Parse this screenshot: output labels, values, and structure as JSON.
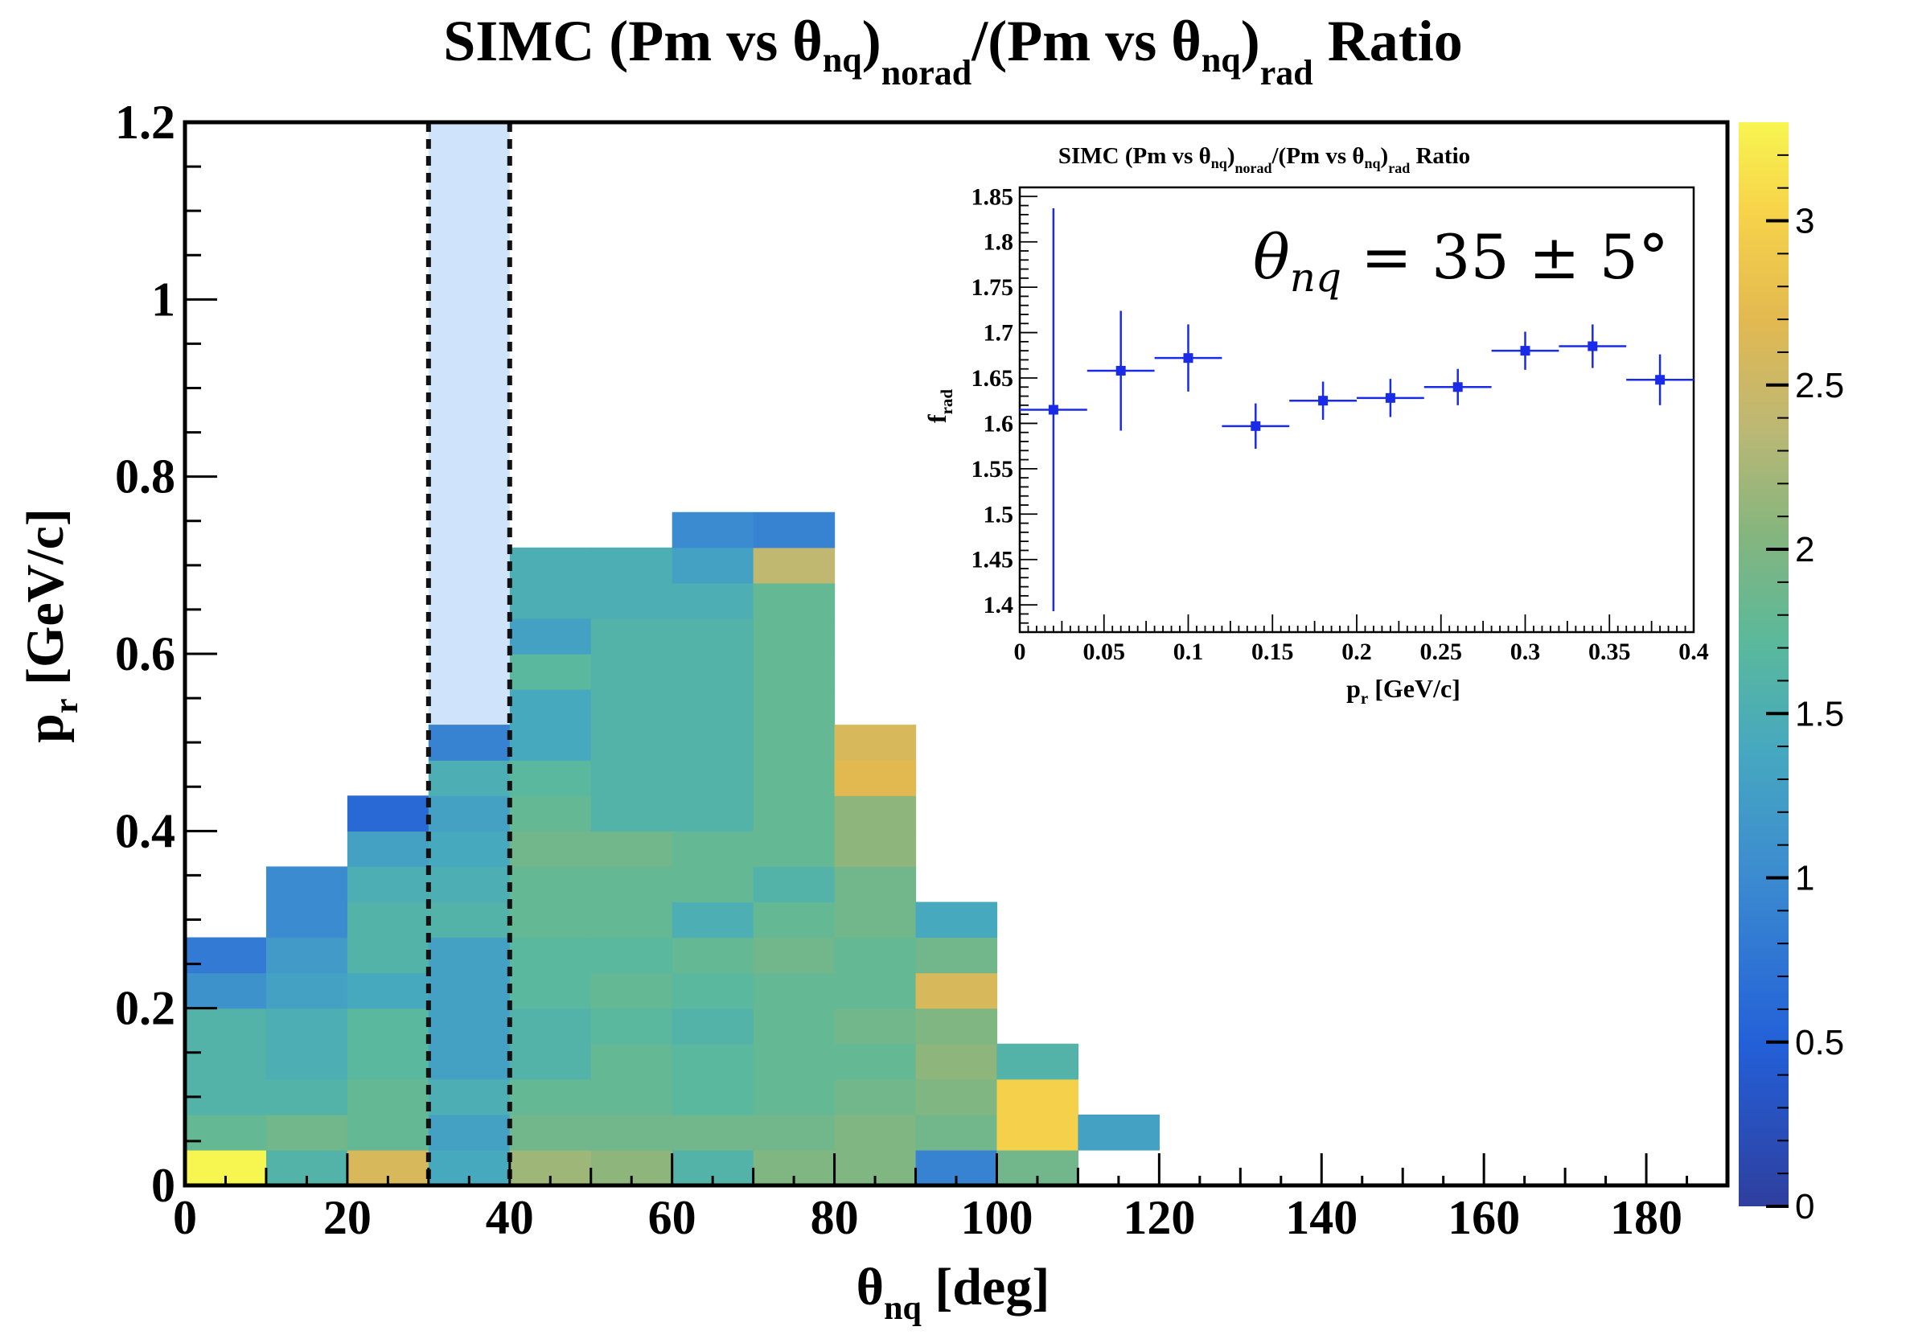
{
  "chart_data": [
    {
      "type": "heatmap",
      "title_parts": [
        "SIMC (Pm vs  ",
        "θ",
        "nq",
        ")",
        "norad",
        "/(Pm vs  ",
        "θ",
        "nq",
        ")",
        "rad",
        " Ratio"
      ],
      "xlabel": "θ",
      "xlabel_sub": "nq",
      "xlabel_unit": " [deg]",
      "ylabel": "p",
      "ylabel_sub": "r",
      "ylabel_unit": " [GeV/c]",
      "xlim": [
        0,
        190
      ],
      "ylim": [
        0,
        1.2
      ],
      "xticks": [
        "0",
        "20",
        "40",
        "60",
        "80",
        "100",
        "120",
        "140",
        "160",
        "180"
      ],
      "yticks": [
        "0",
        "0.2",
        "0.4",
        "0.6",
        "0.8",
        "1",
        "1.2"
      ],
      "bin_width_x": 10,
      "bin_width_y": 0.04,
      "cells": [
        [
          0,
          0,
          3.3
        ],
        [
          0,
          1,
          1.8
        ],
        [
          0,
          2,
          1.6
        ],
        [
          0,
          3,
          1.6
        ],
        [
          0,
          4,
          1.6
        ],
        [
          0,
          5,
          1.1
        ],
        [
          0,
          6,
          0.8
        ],
        [
          10,
          0,
          1.6
        ],
        [
          10,
          1,
          1.9
        ],
        [
          10,
          2,
          1.6
        ],
        [
          10,
          3,
          1.5
        ],
        [
          10,
          4,
          1.5
        ],
        [
          10,
          5,
          1.3
        ],
        [
          10,
          6,
          1.2
        ],
        [
          10,
          7,
          1.0
        ],
        [
          10,
          8,
          1.0
        ],
        [
          20,
          0,
          2.6
        ],
        [
          20,
          1,
          1.8
        ],
        [
          20,
          2,
          1.8
        ],
        [
          20,
          3,
          1.7
        ],
        [
          20,
          4,
          1.7
        ],
        [
          20,
          5,
          1.4
        ],
        [
          20,
          6,
          1.6
        ],
        [
          20,
          7,
          1.6
        ],
        [
          20,
          8,
          1.5
        ],
        [
          20,
          9,
          1.3
        ],
        [
          20,
          10,
          0.6
        ],
        [
          30,
          0,
          1.4
        ],
        [
          30,
          1,
          1.3
        ],
        [
          30,
          2,
          1.5
        ],
        [
          30,
          3,
          1.3
        ],
        [
          30,
          4,
          1.3
        ],
        [
          30,
          5,
          1.3
        ],
        [
          30,
          6,
          1.3
        ],
        [
          30,
          7,
          1.6
        ],
        [
          30,
          8,
          1.5
        ],
        [
          30,
          9,
          1.4
        ],
        [
          30,
          10,
          1.3
        ],
        [
          30,
          11,
          1.5
        ],
        [
          30,
          12,
          0.9
        ],
        [
          40,
          0,
          2.2
        ],
        [
          40,
          1,
          1.9
        ],
        [
          40,
          2,
          1.8
        ],
        [
          40,
          3,
          1.6
        ],
        [
          40,
          4,
          1.6
        ],
        [
          40,
          5,
          1.7
        ],
        [
          40,
          6,
          1.7
        ],
        [
          40,
          7,
          1.8
        ],
        [
          40,
          8,
          1.8
        ],
        [
          40,
          9,
          1.9
        ],
        [
          40,
          10,
          1.8
        ],
        [
          40,
          11,
          1.7
        ],
        [
          40,
          12,
          1.4
        ],
        [
          40,
          13,
          1.4
        ],
        [
          40,
          14,
          1.7
        ],
        [
          40,
          15,
          1.3
        ],
        [
          40,
          16,
          1.5
        ],
        [
          40,
          17,
          1.5
        ],
        [
          50,
          0,
          2.1
        ],
        [
          50,
          1,
          1.9
        ],
        [
          50,
          2,
          1.8
        ],
        [
          50,
          3,
          1.8
        ],
        [
          50,
          4,
          1.7
        ],
        [
          50,
          5,
          1.8
        ],
        [
          50,
          6,
          1.7
        ],
        [
          50,
          7,
          1.8
        ],
        [
          50,
          8,
          1.8
        ],
        [
          50,
          9,
          1.9
        ],
        [
          50,
          10,
          1.6
        ],
        [
          50,
          11,
          1.6
        ],
        [
          50,
          12,
          1.6
        ],
        [
          50,
          13,
          1.6
        ],
        [
          50,
          14,
          1.6
        ],
        [
          50,
          15,
          1.6
        ],
        [
          50,
          16,
          1.5
        ],
        [
          50,
          17,
          1.5
        ],
        [
          60,
          0,
          1.6
        ],
        [
          60,
          1,
          1.9
        ],
        [
          60,
          2,
          1.7
        ],
        [
          60,
          3,
          1.7
        ],
        [
          60,
          4,
          1.6
        ],
        [
          60,
          5,
          1.7
        ],
        [
          60,
          6,
          1.8
        ],
        [
          60,
          7,
          1.5
        ],
        [
          60,
          8,
          1.8
        ],
        [
          60,
          9,
          1.8
        ],
        [
          60,
          10,
          1.6
        ],
        [
          60,
          11,
          1.6
        ],
        [
          60,
          12,
          1.6
        ],
        [
          60,
          13,
          1.6
        ],
        [
          60,
          14,
          1.6
        ],
        [
          60,
          15,
          1.6
        ],
        [
          60,
          16,
          1.5
        ],
        [
          60,
          17,
          1.3
        ],
        [
          60,
          18,
          1.0
        ],
        [
          70,
          0,
          2.0
        ],
        [
          70,
          1,
          1.9
        ],
        [
          70,
          2,
          1.8
        ],
        [
          70,
          3,
          1.8
        ],
        [
          70,
          4,
          1.8
        ],
        [
          70,
          5,
          1.8
        ],
        [
          70,
          6,
          1.9
        ],
        [
          70,
          7,
          1.8
        ],
        [
          70,
          8,
          1.6
        ],
        [
          70,
          9,
          1.8
        ],
        [
          70,
          10,
          1.8
        ],
        [
          70,
          11,
          1.8
        ],
        [
          70,
          12,
          1.8
        ],
        [
          70,
          13,
          1.8
        ],
        [
          70,
          14,
          1.8
        ],
        [
          70,
          15,
          1.8
        ],
        [
          70,
          16,
          1.8
        ],
        [
          70,
          17,
          2.4
        ],
        [
          70,
          18,
          0.9
        ],
        [
          80,
          0,
          2.0
        ],
        [
          80,
          1,
          2.0
        ],
        [
          80,
          2,
          1.9
        ],
        [
          80,
          3,
          1.8
        ],
        [
          80,
          4,
          1.9
        ],
        [
          80,
          5,
          1.8
        ],
        [
          80,
          6,
          1.8
        ],
        [
          80,
          7,
          1.9
        ],
        [
          80,
          8,
          1.9
        ],
        [
          80,
          9,
          2.1
        ],
        [
          80,
          10,
          2.1
        ],
        [
          80,
          11,
          2.7
        ],
        [
          80,
          12,
          2.6
        ],
        [
          90,
          0,
          0.9
        ],
        [
          90,
          1,
          1.9
        ],
        [
          90,
          2,
          2.0
        ],
        [
          90,
          3,
          2.1
        ],
        [
          90,
          4,
          2.0
        ],
        [
          90,
          5,
          2.6
        ],
        [
          90,
          6,
          1.9
        ],
        [
          90,
          7,
          1.4
        ],
        [
          100,
          0,
          1.9
        ],
        [
          100,
          1,
          3.0
        ],
        [
          100,
          2,
          3.0
        ],
        [
          100,
          3,
          1.6
        ],
        [
          110,
          1,
          1.3
        ]
      ],
      "highlight_band": {
        "x0": 30,
        "x1": 40,
        "color": "#cfe3fb"
      },
      "colorbar": {
        "min": 0,
        "max": 3.3,
        "ticks": [
          "0",
          "0.5",
          "1",
          "1.5",
          "2",
          "2.5",
          "3"
        ]
      }
    },
    {
      "type": "scatter",
      "title_parts": [
        "SIMC (Pm vs  ",
        "θ",
        "nq",
        ")",
        "norad",
        "/(Pm vs  ",
        "θ",
        "nq",
        ")",
        "rad",
        " Ratio"
      ],
      "xlabel": "p",
      "xlabel_sub": "r",
      "xlabel_unit": " [GeV/c]",
      "ylabel": "f",
      "ylabel_sub": "rad",
      "xlim": [
        0,
        0.4
      ],
      "ylim": [
        1.37,
        1.86
      ],
      "xticks": [
        "0",
        "0.05",
        "0.1",
        "0.15",
        "0.2",
        "0.25",
        "0.3",
        "0.35",
        "0.4"
      ],
      "yticks": [
        "1.4",
        "1.45",
        "1.5",
        "1.55",
        "1.6",
        "1.65",
        "1.7",
        "1.75",
        "1.8",
        "1.85"
      ],
      "annotation_prefix": "θ",
      "annotation_sub": "nq",
      "annotation_suffix": " = 35 ± 5°",
      "points": [
        {
          "x": 0.02,
          "y": 1.615,
          "xerr": 0.02,
          "yerr": 0.222
        },
        {
          "x": 0.06,
          "y": 1.658,
          "xerr": 0.02,
          "yerr": 0.066
        },
        {
          "x": 0.1,
          "y": 1.672,
          "xerr": 0.02,
          "yerr": 0.037
        },
        {
          "x": 0.14,
          "y": 1.597,
          "xerr": 0.02,
          "yerr": 0.025
        },
        {
          "x": 0.18,
          "y": 1.625,
          "xerr": 0.02,
          "yerr": 0.021
        },
        {
          "x": 0.22,
          "y": 1.628,
          "xerr": 0.02,
          "yerr": 0.021
        },
        {
          "x": 0.26,
          "y": 1.64,
          "xerr": 0.02,
          "yerr": 0.02
        },
        {
          "x": 0.3,
          "y": 1.68,
          "xerr": 0.02,
          "yerr": 0.021
        },
        {
          "x": 0.34,
          "y": 1.685,
          "xerr": 0.02,
          "yerr": 0.024
        },
        {
          "x": 0.38,
          "y": 1.648,
          "xerr": 0.02,
          "yerr": 0.028
        }
      ],
      "marker_color": "#1a2be8"
    }
  ]
}
